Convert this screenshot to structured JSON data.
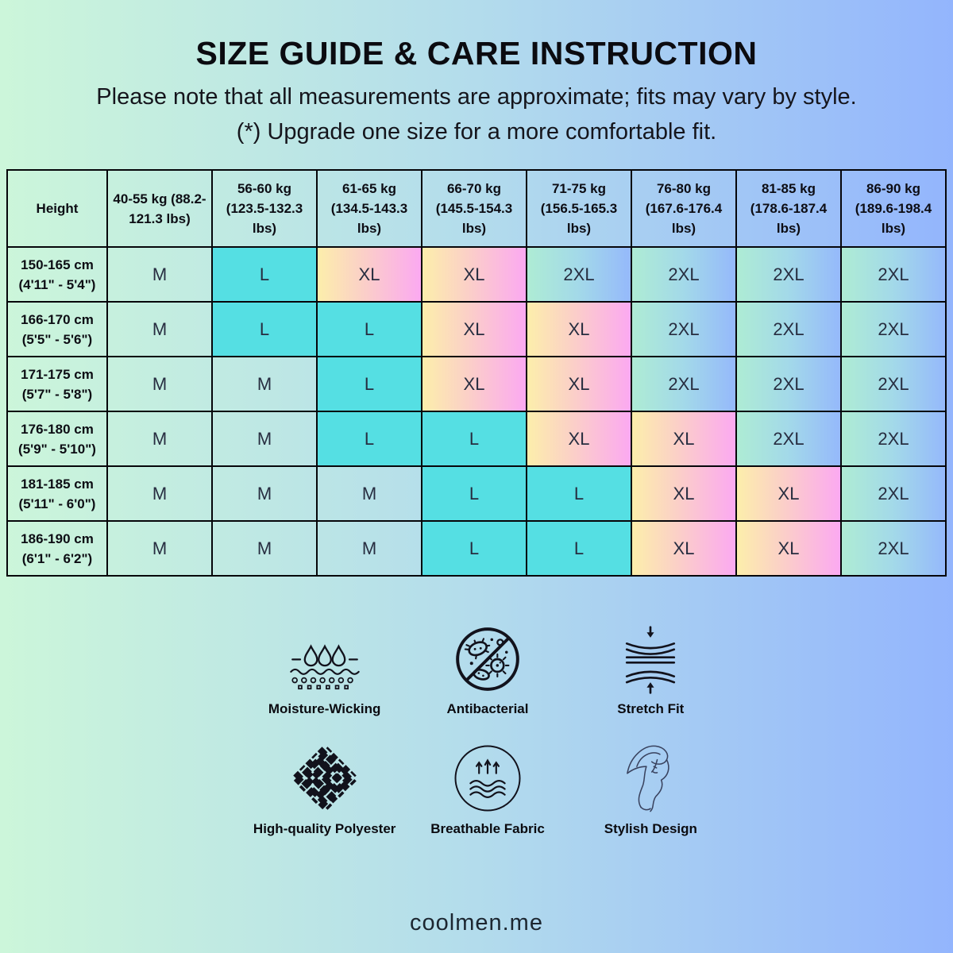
{
  "title": "SIZE GUIDE & CARE INSTRUCTION",
  "subtitle_line1": "Please note that all measurements are approximate; fits may vary by style.",
  "subtitle_line2": "(*) Upgrade one size for a more comfortable fit.",
  "colors": {
    "bg_left": "#ccf6da",
    "bg_mid": "#b3dcec",
    "bg_right": "#93b5fd",
    "border": "#06060a",
    "size_L_fill": "#55dfe3",
    "size_XL_gradient": [
      "#fceeab",
      "#fbcfc8",
      "#fba9f1"
    ],
    "size_2XL_gradient": [
      "#aeecd4",
      "#a3d9e9",
      "#95b9fb"
    ]
  },
  "table": {
    "corner_header": "Height",
    "weight_headers": [
      "40-55 kg (88.2-121.3 lbs)",
      "56-60 kg (123.5-132.3 lbs)",
      "61-65 kg (134.5-143.3 lbs)",
      "66-70 kg (145.5-154.3 lbs)",
      "71-75 kg (156.5-165.3 lbs)",
      "76-80 kg (167.6-176.4 lbs)",
      "81-85 kg (178.6-187.4 lbs)",
      "86-90 kg (189.6-198.4 lbs)"
    ],
    "rows": [
      {
        "height_cm": "150-165 cm",
        "height_ft": "(4'11\" - 5'4\")",
        "sizes": [
          "M",
          "L",
          "XL",
          "XL",
          "2XL",
          "2XL",
          "2XL",
          "2XL"
        ]
      },
      {
        "height_cm": "166-170 cm",
        "height_ft": "(5'5\" - 5'6\")",
        "sizes": [
          "M",
          "L",
          "L",
          "XL",
          "XL",
          "2XL",
          "2XL",
          "2XL"
        ]
      },
      {
        "height_cm": "171-175 cm",
        "height_ft": "(5'7\" - 5'8\")",
        "sizes": [
          "M",
          "M",
          "L",
          "XL",
          "XL",
          "2XL",
          "2XL",
          "2XL"
        ]
      },
      {
        "height_cm": "176-180 cm",
        "height_ft": "(5'9\" - 5'10\")",
        "sizes": [
          "M",
          "M",
          "L",
          "L",
          "XL",
          "XL",
          "2XL",
          "2XL"
        ]
      },
      {
        "height_cm": "181-185 cm",
        "height_ft": "(5'11\" - 6'0\")",
        "sizes": [
          "M",
          "M",
          "M",
          "L",
          "L",
          "XL",
          "XL",
          "2XL"
        ]
      },
      {
        "height_cm": "186-190 cm",
        "height_ft": "(6'1\" - 6'2\")",
        "sizes": [
          "M",
          "M",
          "M",
          "L",
          "L",
          "XL",
          "XL",
          "2XL"
        ]
      }
    ]
  },
  "features": [
    {
      "icon": "moisture-wicking-icon",
      "label": "Moisture-Wicking"
    },
    {
      "icon": "antibacterial-icon",
      "label": "Antibacterial"
    },
    {
      "icon": "stretch-fit-icon",
      "label": "Stretch Fit"
    },
    {
      "icon": "high-quality-polyester-icon",
      "label": "High-quality Polyester"
    },
    {
      "icon": "breathable-fabric-icon",
      "label": "Breathable Fabric"
    },
    {
      "icon": "stylish-design-icon",
      "label": "Stylish Design"
    }
  ],
  "footer": {
    "brand": "coolmen.me"
  }
}
